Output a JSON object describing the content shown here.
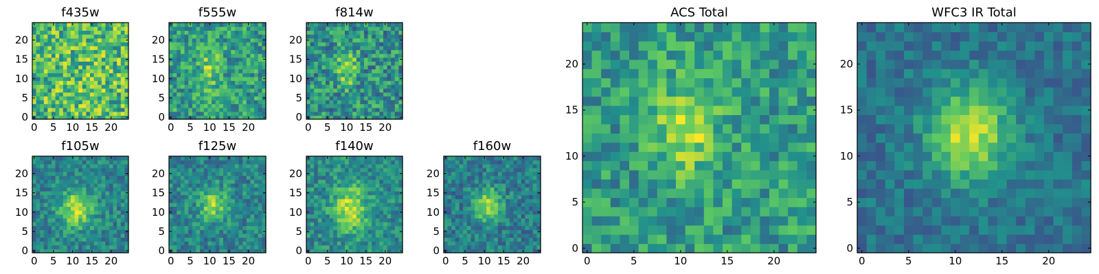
{
  "chart_data": [
    {
      "type": "heatmap",
      "title": "f435w",
      "xticks": [
        "0",
        "5",
        "10",
        "15",
        "20"
      ],
      "yticks": [
        "0",
        "5",
        "10",
        "15",
        "20"
      ],
      "xlim": [
        0,
        24
      ],
      "ylim": [
        0,
        24
      ],
      "colormap": "viridis",
      "grid": false
    },
    {
      "type": "heatmap",
      "title": "f555w",
      "xticks": [
        "0",
        "5",
        "10",
        "15",
        "20"
      ],
      "yticks": [
        "0",
        "5",
        "10",
        "15",
        "20"
      ],
      "xlim": [
        0,
        24
      ],
      "ylim": [
        0,
        24
      ],
      "colormap": "viridis",
      "grid": false
    },
    {
      "type": "heatmap",
      "title": "f814w",
      "xticks": [
        "0",
        "5",
        "10",
        "15",
        "20"
      ],
      "yticks": [
        "0",
        "5",
        "10",
        "15",
        "20"
      ],
      "xlim": [
        0,
        24
      ],
      "ylim": [
        0,
        24
      ],
      "colormap": "viridis",
      "grid": false
    },
    {
      "type": "heatmap",
      "title": "f105w",
      "xticks": [
        "0",
        "5",
        "10",
        "15",
        "20"
      ],
      "yticks": [
        "0",
        "5",
        "10",
        "15",
        "20"
      ],
      "xlim": [
        0,
        24
      ],
      "ylim": [
        0,
        24
      ],
      "colormap": "viridis",
      "grid": false
    },
    {
      "type": "heatmap",
      "title": "f125w",
      "xticks": [
        "0",
        "5",
        "10",
        "15",
        "20"
      ],
      "yticks": [
        "0",
        "5",
        "10",
        "15",
        "20"
      ],
      "xlim": [
        0,
        24
      ],
      "ylim": [
        0,
        24
      ],
      "colormap": "viridis",
      "grid": false
    },
    {
      "type": "heatmap",
      "title": "f140w",
      "xticks": [
        "0",
        "5",
        "10",
        "15",
        "20"
      ],
      "yticks": [
        "0",
        "5",
        "10",
        "15",
        "20"
      ],
      "xlim": [
        0,
        24
      ],
      "ylim": [
        0,
        24
      ],
      "colormap": "viridis",
      "grid": false
    },
    {
      "type": "heatmap",
      "title": "f160w",
      "xticks": [
        "0",
        "5",
        "10",
        "15",
        "20"
      ],
      "yticks": [
        "0",
        "5",
        "10",
        "15",
        "20"
      ],
      "xlim": [
        0,
        24
      ],
      "ylim": [
        0,
        24
      ],
      "colormap": "viridis",
      "grid": false
    },
    {
      "type": "heatmap",
      "title": "ACS Total",
      "xticks": [
        "0",
        "5",
        "10",
        "15",
        "20"
      ],
      "yticks": [
        "0",
        "5",
        "10",
        "15",
        "20"
      ],
      "xlim": [
        0,
        24
      ],
      "ylim": [
        0,
        24
      ],
      "colormap": "viridis",
      "grid": false
    },
    {
      "type": "heatmap",
      "title": "WFC3 IR Total",
      "xticks": [
        "0",
        "5",
        "10",
        "15",
        "20"
      ],
      "yticks": [
        "0",
        "5",
        "10",
        "15",
        "20"
      ],
      "xlim": [
        0,
        24
      ],
      "ylim": [
        0,
        24
      ],
      "colormap": "viridis",
      "grid": false
    }
  ]
}
